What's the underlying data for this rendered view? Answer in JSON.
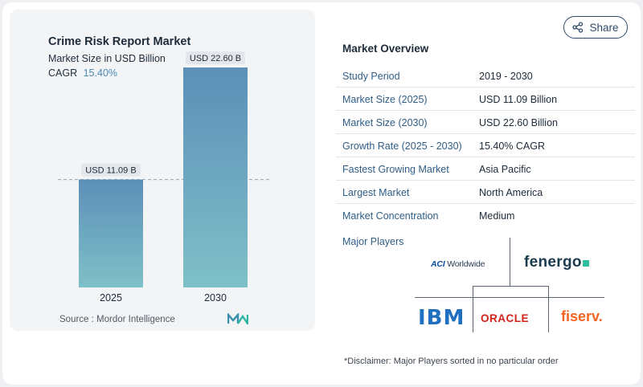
{
  "chart": {
    "title": "Crime Risk Report Market",
    "subtitle": "Market Size in USD Billion",
    "cagr_label": "CAGR",
    "cagr_value": "15.40%",
    "source": "Source :  Mordor Intelligence",
    "bar_labels": [
      "USD 11.09 B",
      "USD 22.60 B"
    ]
  },
  "chart_data": {
    "type": "bar",
    "categories": [
      "2025",
      "2030"
    ],
    "values": [
      11.09,
      22.6
    ],
    "title": "Crime Risk Report Market",
    "xlabel": "",
    "ylabel": "",
    "ylim": [
      0,
      25
    ],
    "grid": false,
    "reference_line": 11.09,
    "colors": {
      "bar_top": "#5c8fb8",
      "bar_bottom": "#7fc0c8",
      "label_bg": "#e3e6ea"
    }
  },
  "share": {
    "label": "Share",
    "icon": "share-icon"
  },
  "overview": {
    "title": "Market Overview",
    "rows": [
      {
        "label": "Study Period",
        "value": "2019 - 2030"
      },
      {
        "label": "Market Size (2025)",
        "value": "USD 11.09 Billion"
      },
      {
        "label": "Market Size (2030)",
        "value": "USD 22.60 Billion"
      },
      {
        "label": "Growth Rate (2025 - 2030)",
        "value": "15.40% CAGR"
      },
      {
        "label": "Fastest Growing Market",
        "value": "Asia Pacific"
      },
      {
        "label": "Largest Market",
        "value": "North America"
      },
      {
        "label": "Market Concentration",
        "value": "Medium"
      }
    ]
  },
  "players": {
    "title": "Major Players",
    "logos": {
      "aci": "ACI Worldwide",
      "fenergo": "fenergo",
      "ibm": "IBM",
      "oracle": "ORACLE",
      "fiserv": "fiserv."
    }
  },
  "disclaimer": "*Disclaimer: Major Players sorted in no particular order",
  "colors": {
    "accent": "#2f5d86",
    "cagr": "#4a8ab5"
  }
}
